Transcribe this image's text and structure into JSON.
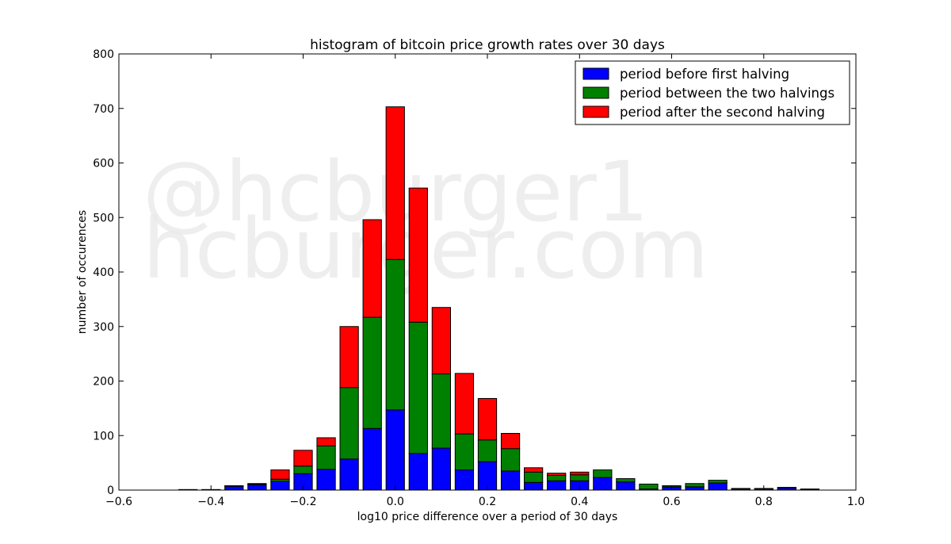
{
  "chart_data": {
    "type": "bar",
    "stacked": true,
    "title": "histogram of bitcoin price growth rates over 30 days",
    "xlabel": "log10 price difference over a period of 30 days",
    "ylabel": "number of occurences",
    "xlim": [
      -0.6,
      1.0
    ],
    "ylim": [
      0,
      800
    ],
    "xticks": [
      "−0.6",
      "−0.4",
      "−0.2",
      "0.0",
      "0.2",
      "0.4",
      "0.6",
      "0.8",
      "1.0"
    ],
    "yticks": [
      "0",
      "100",
      "200",
      "300",
      "400",
      "500",
      "600",
      "700",
      "800"
    ],
    "bin_width": 0.04,
    "x": [
      -0.5,
      -0.45,
      -0.4,
      -0.35,
      -0.3,
      -0.25,
      -0.2,
      -0.15,
      -0.1,
      -0.05,
      0.0,
      0.05,
      0.1,
      0.15,
      0.2,
      0.25,
      0.3,
      0.35,
      0.4,
      0.45,
      0.5,
      0.55,
      0.6,
      0.65,
      0.7,
      0.75,
      0.8,
      0.85,
      0.9,
      0.95
    ],
    "series": [
      {
        "name": "period before first halving",
        "color": "#0000ff",
        "values": [
          0,
          1,
          1,
          7,
          10,
          16,
          30,
          38,
          57,
          113,
          147,
          67,
          77,
          37,
          52,
          35,
          14,
          17,
          17,
          23,
          15,
          2,
          6,
          6,
          13,
          2,
          2,
          4,
          1,
          0
        ]
      },
      {
        "name": "period between the two halvings",
        "color": "#008000",
        "values": [
          0,
          0,
          0,
          1,
          1,
          4,
          14,
          43,
          131,
          204,
          276,
          241,
          136,
          66,
          40,
          41,
          19,
          10,
          11,
          14,
          6,
          9,
          2,
          6,
          5,
          1,
          1,
          1,
          1,
          0
        ]
      },
      {
        "name": "period after the second halving",
        "color": "#ff0000",
        "values": [
          0,
          0,
          0,
          0,
          1,
          17,
          29,
          15,
          112,
          179,
          280,
          246,
          122,
          111,
          76,
          28,
          8,
          4,
          5,
          0,
          0,
          0,
          0,
          0,
          0,
          0,
          0,
          0,
          0,
          0
        ]
      }
    ],
    "legend_position": "top-right",
    "watermark": [
      "@hcburger1",
      "hcburger.com"
    ]
  }
}
